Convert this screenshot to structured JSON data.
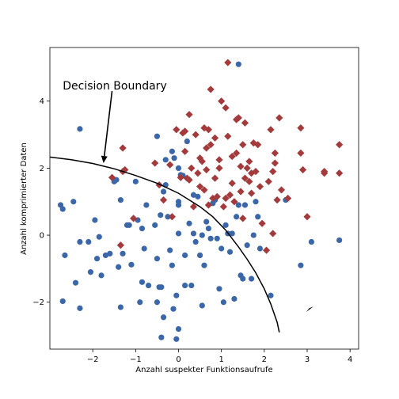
{
  "chart_data": {
    "type": "scatter",
    "xlabel": "Anzahl suspekter Funktionsaufrufe",
    "ylabel": "Anzahl komprimierter Daten",
    "xlim": [
      -3.0,
      4.2
    ],
    "ylim": [
      -3.4,
      5.6
    ],
    "xticks": [
      -2,
      -1,
      0,
      1,
      2,
      3,
      4
    ],
    "yticks": [
      -2,
      0,
      2,
      4
    ],
    "grid": false,
    "annotation": {
      "text": "Decision Boundary",
      "text_at": [
        -2.7,
        4.35
      ],
      "arrow_from": [
        -1.55,
        4.3
      ],
      "arrow_to": [
        -1.75,
        2.15
      ]
    },
    "decision_boundary": {
      "x": [
        -3.0,
        -2.5,
        -2.0,
        -1.5,
        -1.0,
        -0.5,
        0.0,
        0.5,
        0.8,
        1.1,
        1.4,
        1.6,
        1.8,
        2.0,
        2.15,
        2.3,
        2.35
      ],
      "y": [
        2.33,
        2.25,
        2.14,
        1.98,
        1.78,
        1.55,
        1.25,
        0.85,
        0.55,
        0.15,
        -0.35,
        -0.72,
        -1.12,
        -1.6,
        -2.05,
        -2.6,
        -2.9
      ]
    },
    "stray_marker": {
      "x": 3.05,
      "y": -2.2
    },
    "series": [
      {
        "color": "#3b67a8",
        "marker": "circle",
        "points": [
          [
            -2.75,
            0.9
          ],
          [
            -2.7,
            0.78
          ],
          [
            -2.65,
            -0.6
          ],
          [
            -2.7,
            -1.97
          ],
          [
            -2.45,
            1.0
          ],
          [
            -2.4,
            -1.42
          ],
          [
            -2.3,
            3.17
          ],
          [
            -2.3,
            -2.18
          ],
          [
            -2.3,
            -0.2
          ],
          [
            -2.1,
            -0.2
          ],
          [
            -2.05,
            -1.1
          ],
          [
            -1.95,
            0.45
          ],
          [
            -1.9,
            -0.7
          ],
          [
            -1.85,
            -0.05
          ],
          [
            -1.8,
            -1.2
          ],
          [
            -1.7,
            -0.6
          ],
          [
            -1.6,
            -0.55
          ],
          [
            -1.5,
            1.6
          ],
          [
            -1.45,
            1.65
          ],
          [
            -1.4,
            -0.95
          ],
          [
            -1.35,
            1.05
          ],
          [
            -1.35,
            -2.15
          ],
          [
            -1.3,
            -0.55
          ],
          [
            -1.2,
            0.3
          ],
          [
            -1.15,
            0.3
          ],
          [
            -1.1,
            -0.88
          ],
          [
            -1.0,
            1.6
          ],
          [
            -0.95,
            0.45
          ],
          [
            -0.9,
            -2.0
          ],
          [
            -0.85,
            -1.4
          ],
          [
            -0.85,
            0.2
          ],
          [
            -0.8,
            -0.4
          ],
          [
            -0.75,
            0.9
          ],
          [
            -0.7,
            -1.5
          ],
          [
            -0.55,
            0.3
          ],
          [
            -0.5,
            -0.7
          ],
          [
            -0.5,
            -2.0
          ],
          [
            -0.5,
            2.95
          ],
          [
            -0.45,
            -1.55
          ],
          [
            -0.42,
            0.6
          ],
          [
            -0.4,
            -1.55
          ],
          [
            -0.4,
            -3.05
          ],
          [
            -0.35,
            -2.45
          ],
          [
            -0.35,
            1.3
          ],
          [
            -0.3,
            1.5
          ],
          [
            -0.3,
            2.25
          ],
          [
            -0.25,
            0.55
          ],
          [
            -0.2,
            -0.45
          ],
          [
            -0.15,
            -0.9
          ],
          [
            -0.15,
            2.5
          ],
          [
            -0.12,
            -2.2
          ],
          [
            -0.1,
            2.3
          ],
          [
            -0.05,
            -1.8
          ],
          [
            -0.05,
            -3.1
          ],
          [
            0.0,
            0.05
          ],
          [
            0.0,
            -2.8
          ],
          [
            0.0,
            2.0
          ],
          [
            0.0,
            1.0
          ],
          [
            0.0,
            0.9
          ],
          [
            0.05,
            1.8
          ],
          [
            0.1,
            1.78
          ],
          [
            0.15,
            -0.6
          ],
          [
            0.15,
            -1.5
          ],
          [
            0.2,
            2.8
          ],
          [
            0.25,
            0.35
          ],
          [
            0.3,
            -1.5
          ],
          [
            0.35,
            0.05
          ],
          [
            0.35,
            1.2
          ],
          [
            0.4,
            -0.2
          ],
          [
            0.45,
            1.15
          ],
          [
            0.5,
            -0.6
          ],
          [
            0.55,
            -2.1
          ],
          [
            0.55,
            0.0
          ],
          [
            0.6,
            -0.9
          ],
          [
            0.65,
            0.4
          ],
          [
            0.7,
            0.2
          ],
          [
            0.75,
            -0.1
          ],
          [
            0.8,
            0.95
          ],
          [
            0.85,
            1.05
          ],
          [
            0.9,
            -0.1
          ],
          [
            0.95,
            -1.6
          ],
          [
            1.0,
            -0.4
          ],
          [
            1.05,
            -2.0
          ],
          [
            1.1,
            0.3
          ],
          [
            1.15,
            0.05
          ],
          [
            1.2,
            -0.5
          ],
          [
            1.25,
            0.05
          ],
          [
            1.3,
            -1.9
          ],
          [
            1.35,
            0.55
          ],
          [
            1.4,
            0.9
          ],
          [
            1.4,
            5.1
          ],
          [
            1.45,
            -1.2
          ],
          [
            1.5,
            -1.3
          ],
          [
            1.55,
            0.9
          ],
          [
            1.6,
            -0.3
          ],
          [
            1.7,
            -1.3
          ],
          [
            1.75,
            0.0
          ],
          [
            1.8,
            1.0
          ],
          [
            1.85,
            0.55
          ],
          [
            1.9,
            -0.4
          ],
          [
            2.15,
            -1.8
          ],
          [
            2.5,
            1.05
          ],
          [
            2.85,
            -0.9
          ],
          [
            3.1,
            -0.2
          ],
          [
            3.75,
            -0.15
          ]
        ]
      },
      {
        "color": "#a33a3c",
        "marker": "diamond",
        "points": [
          [
            -1.55,
            1.72
          ],
          [
            -1.3,
            2.6
          ],
          [
            -1.25,
            1.95
          ],
          [
            -1.3,
            1.9
          ],
          [
            -1.35,
            -0.3
          ],
          [
            -1.05,
            0.5
          ],
          [
            -0.55,
            2.15
          ],
          [
            -0.45,
            1.5
          ],
          [
            -0.35,
            1.05
          ],
          [
            -0.2,
            2.1
          ],
          [
            -0.15,
            0.55
          ],
          [
            -0.05,
            3.15
          ],
          [
            0.05,
            1.72
          ],
          [
            0.1,
            3.05
          ],
          [
            0.15,
            3.1
          ],
          [
            0.15,
            2.5
          ],
          [
            0.2,
            1.7
          ],
          [
            0.25,
            1.65
          ],
          [
            0.25,
            3.6
          ],
          [
            0.3,
            2.0
          ],
          [
            0.35,
            0.85
          ],
          [
            0.4,
            3.0
          ],
          [
            0.45,
            1.85
          ],
          [
            0.5,
            1.45
          ],
          [
            0.5,
            2.3
          ],
          [
            0.55,
            2.2
          ],
          [
            0.6,
            3.2
          ],
          [
            0.6,
            1.35
          ],
          [
            0.65,
            1.95
          ],
          [
            0.65,
            2.6
          ],
          [
            0.7,
            0.9
          ],
          [
            0.7,
            3.15
          ],
          [
            0.75,
            2.7
          ],
          [
            0.75,
            4.35
          ],
          [
            0.8,
            1.1
          ],
          [
            0.85,
            2.9
          ],
          [
            0.85,
            1.7
          ],
          [
            0.9,
            1.15
          ],
          [
            0.95,
            2.25
          ],
          [
            0.95,
            2.0
          ],
          [
            1.0,
            4.0
          ],
          [
            1.05,
            0.85
          ],
          [
            1.1,
            3.8
          ],
          [
            1.1,
            1.1
          ],
          [
            1.15,
            2.95
          ],
          [
            1.15,
            5.15
          ],
          [
            1.2,
            1.2
          ],
          [
            1.25,
            2.35
          ],
          [
            1.25,
            1.55
          ],
          [
            1.3,
            1.0
          ],
          [
            1.35,
            2.45
          ],
          [
            1.35,
            3.45
          ],
          [
            1.4,
            3.5
          ],
          [
            1.45,
            2.05
          ],
          [
            1.45,
            1.3
          ],
          [
            1.5,
            2.7
          ],
          [
            1.5,
            0.5
          ],
          [
            1.55,
            1.7
          ],
          [
            1.55,
            3.35
          ],
          [
            1.6,
            2.0
          ],
          [
            1.65,
            1.6
          ],
          [
            1.65,
            2.2
          ],
          [
            1.7,
            1.25
          ],
          [
            1.7,
            1.85
          ],
          [
            1.75,
            2.75
          ],
          [
            1.8,
            1.9
          ],
          [
            1.85,
            2.7
          ],
          [
            1.9,
            1.45
          ],
          [
            1.95,
            0.35
          ],
          [
            2.05,
            -0.45
          ],
          [
            2.1,
            1.6
          ],
          [
            2.15,
            3.15
          ],
          [
            2.2,
            0.05
          ],
          [
            2.2,
            1.9
          ],
          [
            2.25,
            2.45
          ],
          [
            2.25,
            2.15
          ],
          [
            2.3,
            1.05
          ],
          [
            2.35,
            3.5
          ],
          [
            2.4,
            1.35
          ],
          [
            2.55,
            1.1
          ],
          [
            2.85,
            3.2
          ],
          [
            2.85,
            2.45
          ],
          [
            2.9,
            1.95
          ],
          [
            3.0,
            0.55
          ],
          [
            3.4,
            1.9
          ],
          [
            3.4,
            1.85
          ],
          [
            3.75,
            1.85
          ],
          [
            3.75,
            2.7
          ]
        ]
      }
    ]
  }
}
